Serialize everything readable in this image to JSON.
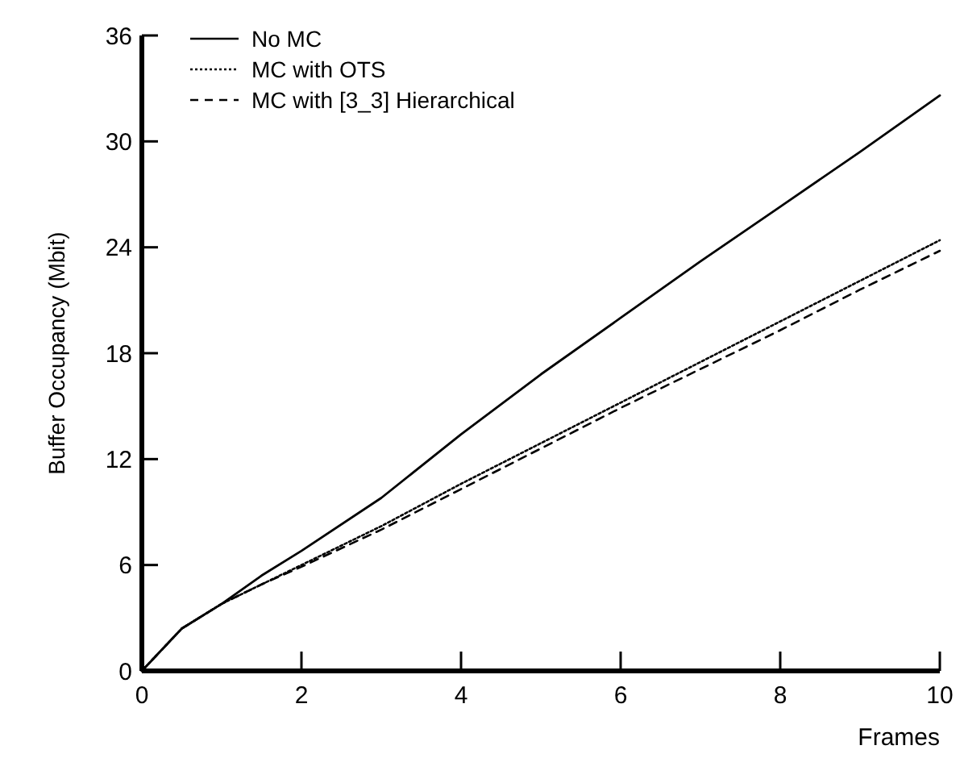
{
  "chart_data": {
    "type": "line",
    "xlabel": "Frames",
    "ylabel": "Buffer Occupancy (Mbit)",
    "x": [
      0,
      0.5,
      1,
      1.5,
      2,
      3,
      4,
      5,
      6,
      7,
      8,
      9,
      10
    ],
    "series": [
      {
        "name": "No MC",
        "color": "#000000",
        "line_style": "solid",
        "values": [
          0,
          2.4,
          3.8,
          5.4,
          6.8,
          9.8,
          13.4,
          16.8,
          20.0,
          23.2,
          26.3,
          29.4,
          32.6
        ]
      },
      {
        "name": "MC with OTS",
        "color": "#000000",
        "line_style": "dotted",
        "values": [
          0,
          2.4,
          3.8,
          4.9,
          6.0,
          8.2,
          10.6,
          12.9,
          15.2,
          17.5,
          19.8,
          22.1,
          24.4
        ]
      },
      {
        "name": "MC with [3_3] Hierarchical",
        "color": "#000000",
        "line_style": "dashed",
        "values": [
          0,
          2.4,
          3.8,
          4.9,
          5.9,
          8.0,
          10.3,
          12.6,
          14.9,
          17.1,
          19.3,
          21.6,
          23.8
        ]
      }
    ],
    "xlim": [
      0,
      10
    ],
    "xticks": [
      0,
      2,
      4,
      6,
      8,
      10
    ],
    "ylim": [
      0,
      36
    ],
    "yticks": [
      0,
      6,
      12,
      18,
      24,
      30,
      36
    ],
    "grid": false,
    "legend": "top left"
  }
}
